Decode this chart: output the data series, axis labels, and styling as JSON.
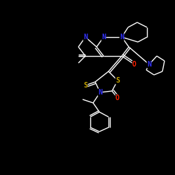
{
  "background_color": "#000000",
  "bond_color": "#ffffff",
  "atom_colors": {
    "N": "#3333ff",
    "O": "#ff2200",
    "S": "#ccaa00",
    "C": "#ffffff"
  },
  "figsize": [
    2.5,
    2.5
  ],
  "dpi": 100,
  "xlim": [
    0,
    250
  ],
  "ylim": [
    0,
    250
  ]
}
